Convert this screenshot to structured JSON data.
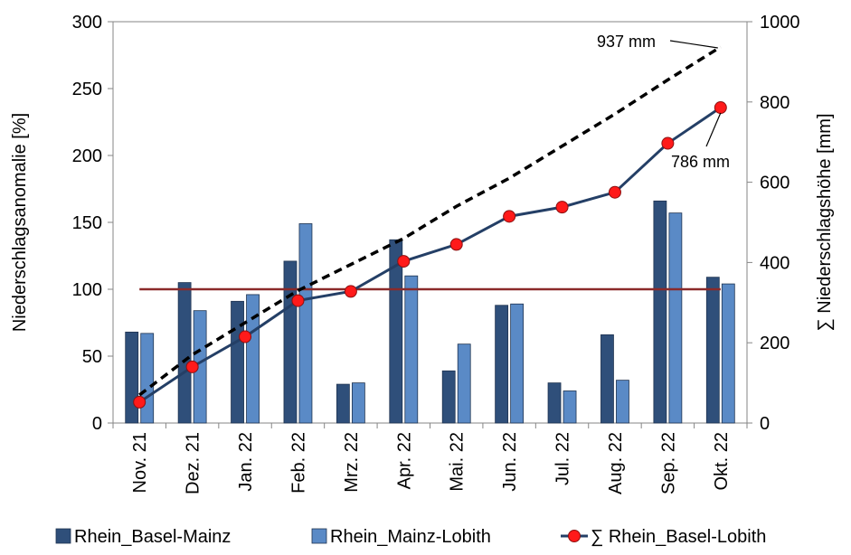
{
  "chart_data": {
    "type": "bar",
    "categories": [
      "Nov. 21",
      "Dez. 21",
      "Jan. 22",
      "Feb. 22",
      "Mrz. 22",
      "Apr. 22",
      "Mai. 22",
      "Jun. 22",
      "Jul. 22",
      "Aug. 22",
      "Sep. 22",
      "Okt. 22"
    ],
    "ylabel_left": "Niederschlagsanomalie [%]",
    "ylabel_right": "∑ Niederschlagshöhe [mm]",
    "ylim_left": [
      0,
      300
    ],
    "ylim_right": [
      0,
      1000
    ],
    "yticks_left": [
      0,
      50,
      100,
      150,
      200,
      250,
      300
    ],
    "yticks_right": [
      0,
      200,
      400,
      600,
      800,
      1000
    ],
    "reference_line_left": 100,
    "series": [
      {
        "name": "Rhein_Basel-Mainz",
        "kind": "bar",
        "axis": "left",
        "color": "#2f4f7a",
        "values": [
          68,
          105,
          91,
          121,
          29,
          137,
          39,
          88,
          30,
          66,
          166,
          109
        ]
      },
      {
        "name": "Rhein_Mainz-Lobith",
        "kind": "bar",
        "axis": "left",
        "color": "#5a8ac6",
        "values": [
          67,
          84,
          96,
          149,
          30,
          110,
          59,
          89,
          24,
          32,
          157,
          104
        ]
      },
      {
        "name": "∑ Rhein_Basel-Lobith",
        "kind": "line-marker",
        "axis": "right",
        "color": "#243f66",
        "marker_color": "#ff1a1a",
        "values": [
          52,
          140,
          215,
          305,
          328,
          403,
          445,
          515,
          538,
          575,
          697,
          786
        ]
      },
      {
        "kind": "dashed-line",
        "axis": "right",
        "color": "#000000",
        "values": [
          70,
          170,
          250,
          330,
          395,
          460,
          540,
          610,
          690,
          770,
          855,
          937
        ]
      }
    ],
    "annotations": [
      {
        "text": "937 mm",
        "series_index": 3,
        "point_index": 11
      },
      {
        "text": "786 mm",
        "series_index": 2,
        "point_index": 11
      }
    ],
    "legend_position": "bottom"
  }
}
